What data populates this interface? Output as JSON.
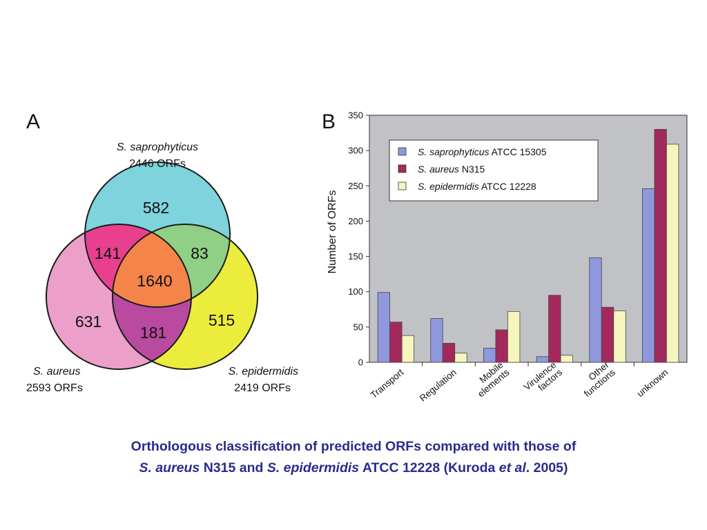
{
  "panel_a": {
    "letter": "A",
    "sets": [
      {
        "species": "S. saprophyticus",
        "orfs": "2446 ORFs",
        "color": "#7ed3dc"
      },
      {
        "species": "S. aureus",
        "orfs": "2593 ORFs",
        "color": "#ec9fc8"
      },
      {
        "species": "S. epidermidis",
        "orfs": "2419 ORFs",
        "color": "#ecec3c"
      }
    ],
    "regions": {
      "sapro_only": "582",
      "aureus_only": "631",
      "epi_only": "515",
      "sapro_aureus": "141",
      "sapro_epi": "83",
      "aureus_epi": "181",
      "all_three": "1640"
    },
    "region_colors": {
      "sapro_aureus": "#e8408f",
      "sapro_epi": "#8fcf86",
      "aureus_epi": "#b94aa0",
      "all_three": "#f4844a"
    }
  },
  "chart_data": {
    "panel_letter": "B",
    "type": "bar",
    "categories": [
      [
        "Transport"
      ],
      [
        "Regulation"
      ],
      [
        "Mobile",
        "elements"
      ],
      [
        "Virulence",
        "factors"
      ],
      [
        "Other",
        "functions"
      ],
      [
        "unknown"
      ]
    ],
    "series": [
      {
        "name_italic": "S. saprophyticus",
        "name_rest": " ATCC 15305",
        "color": "#8f97dd",
        "values": [
          99,
          62,
          20,
          8,
          148,
          246
        ]
      },
      {
        "name_italic": "S. aureus",
        "name_rest": " N315",
        "color": "#a3295c",
        "values": [
          57,
          27,
          46,
          95,
          78,
          330
        ]
      },
      {
        "name_italic": "S. epidermidis",
        "name_rest": " ATCC 12228",
        "color": "#f6f5bd",
        "values": [
          38,
          13,
          72,
          10,
          73,
          309
        ]
      }
    ],
    "ylabel": "Number of ORFs",
    "ylim": [
      0,
      350
    ],
    "yticks": [
      0,
      50,
      100,
      150,
      200,
      250,
      300,
      350
    ],
    "plot_background": "#c1c2c6",
    "legend_position": "top-left"
  },
  "caption": {
    "line1": "Orthologous classification of predicted ORFs compared with those of",
    "l2_species1": "S. aureus",
    "l2_text1": " N315 and ",
    "l2_species2": "S. epidermidis",
    "l2_text2": " ATCC 12228 (Kuroda ",
    "l2_etal": "et al",
    "l2_text3": ". 2005)"
  }
}
